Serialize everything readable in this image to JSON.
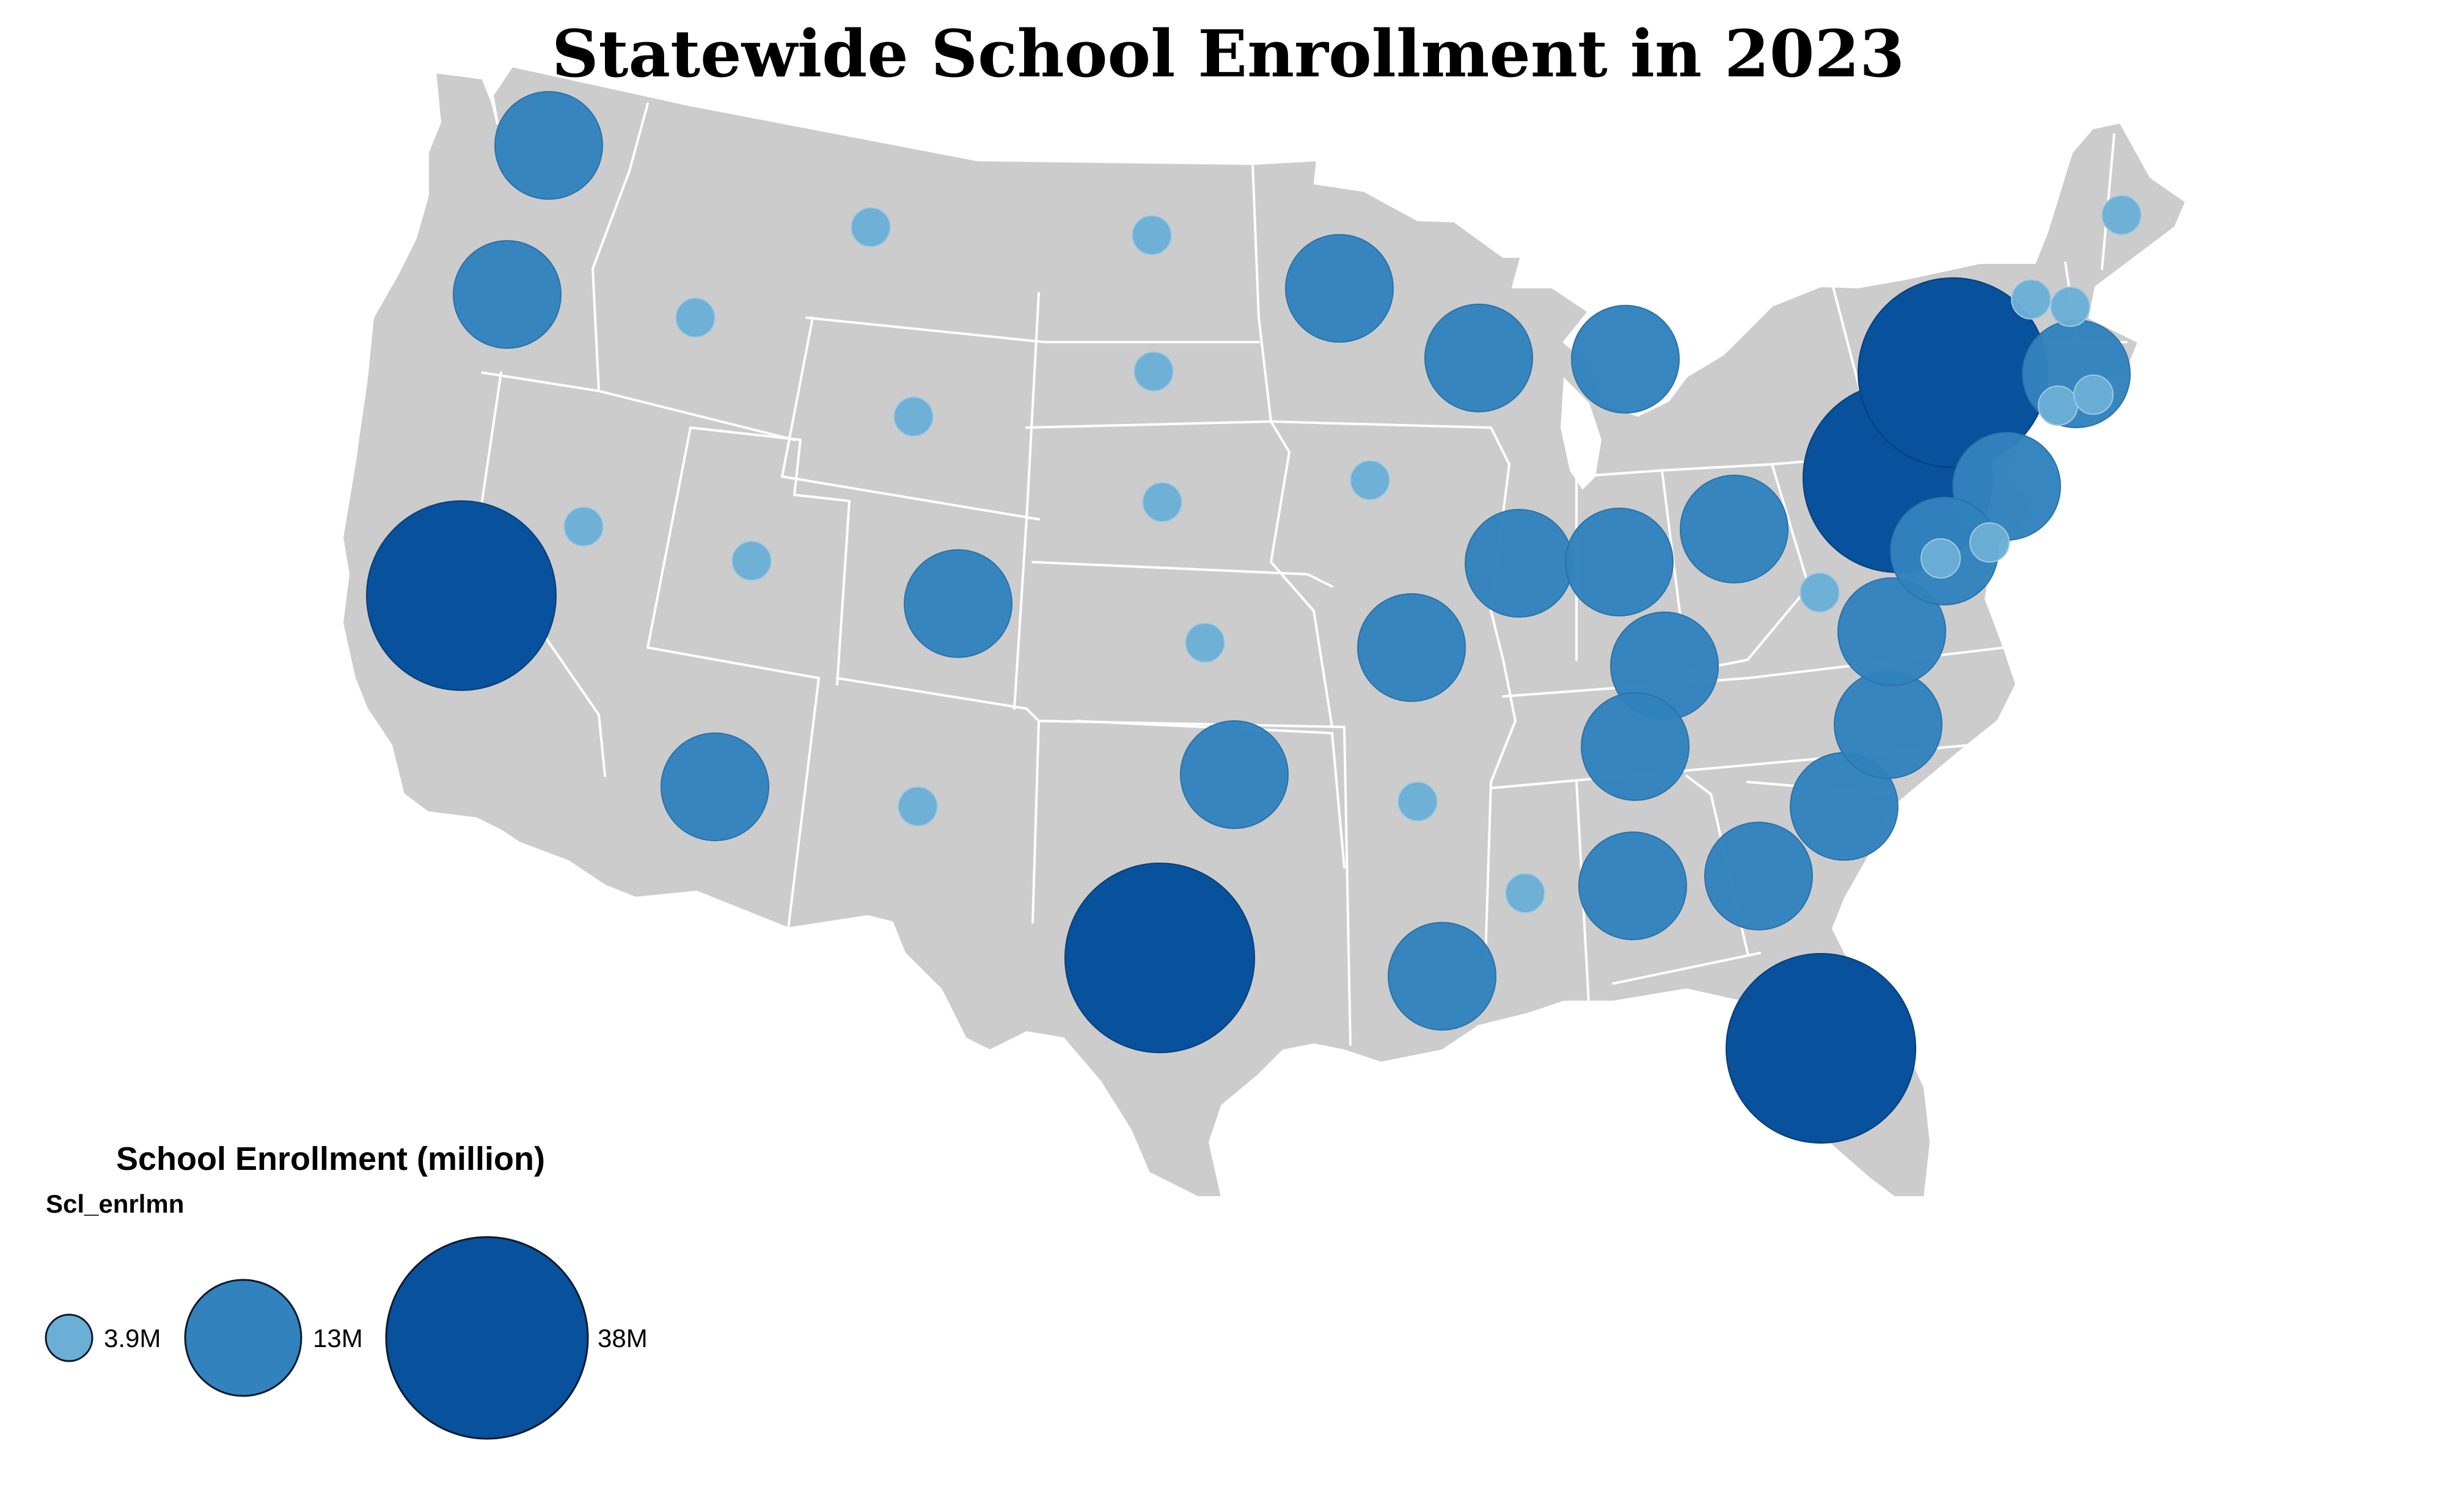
{
  "title": "Statewide School Enrollment in 2023",
  "legend": {
    "title": "School Enrollment (million)",
    "field": "Scl_enrlmn",
    "items": [
      {
        "label": "3.9M",
        "tier": "small"
      },
      {
        "label": "13M",
        "tier": "medium"
      },
      {
        "label": "38M",
        "tier": "large"
      }
    ]
  },
  "colors": {
    "land": "#cccccc",
    "border": "#ffffff",
    "small": "#6baed6",
    "medium": "#3182bd",
    "large": "#08519c"
  },
  "chart_data": {
    "type": "proportional-symbol-map",
    "title": "Statewide School Enrollment in 2023",
    "size_field": "Scl_enrlmn",
    "classes": [
      {
        "label": "3.9M",
        "value_million": 3.9
      },
      {
        "label": "13M",
        "value_million": 13
      },
      {
        "label": "38M",
        "value_million": 38
      }
    ],
    "states": [
      {
        "state": "Washington",
        "tier": "medium"
      },
      {
        "state": "Oregon",
        "tier": "medium"
      },
      {
        "state": "California",
        "tier": "large"
      },
      {
        "state": "Nevada",
        "tier": "small"
      },
      {
        "state": "Idaho",
        "tier": "small"
      },
      {
        "state": "Montana",
        "tier": "small"
      },
      {
        "state": "Wyoming",
        "tier": "small"
      },
      {
        "state": "Utah",
        "tier": "small"
      },
      {
        "state": "Colorado",
        "tier": "medium"
      },
      {
        "state": "Arizona",
        "tier": "medium"
      },
      {
        "state": "New Mexico",
        "tier": "small"
      },
      {
        "state": "North Dakota",
        "tier": "small"
      },
      {
        "state": "South Dakota",
        "tier": "small"
      },
      {
        "state": "Nebraska",
        "tier": "small"
      },
      {
        "state": "Kansas",
        "tier": "small"
      },
      {
        "state": "Oklahoma",
        "tier": "medium"
      },
      {
        "state": "Texas",
        "tier": "large"
      },
      {
        "state": "Minnesota",
        "tier": "medium"
      },
      {
        "state": "Iowa",
        "tier": "small"
      },
      {
        "state": "Missouri",
        "tier": "medium"
      },
      {
        "state": "Arkansas",
        "tier": "small"
      },
      {
        "state": "Louisiana",
        "tier": "medium"
      },
      {
        "state": "Wisconsin",
        "tier": "medium"
      },
      {
        "state": "Illinois",
        "tier": "medium"
      },
      {
        "state": "Michigan",
        "tier": "medium"
      },
      {
        "state": "Indiana",
        "tier": "medium"
      },
      {
        "state": "Ohio",
        "tier": "medium"
      },
      {
        "state": "Kentucky",
        "tier": "medium"
      },
      {
        "state": "Tennessee",
        "tier": "medium"
      },
      {
        "state": "Mississippi",
        "tier": "small"
      },
      {
        "state": "Alabama",
        "tier": "medium"
      },
      {
        "state": "Georgia",
        "tier": "medium"
      },
      {
        "state": "Florida",
        "tier": "large"
      },
      {
        "state": "South Carolina",
        "tier": "medium"
      },
      {
        "state": "North Carolina",
        "tier": "medium"
      },
      {
        "state": "Virginia",
        "tier": "medium"
      },
      {
        "state": "West Virginia",
        "tier": "small"
      },
      {
        "state": "Pennsylvania",
        "tier": "large"
      },
      {
        "state": "New York",
        "tier": "large"
      },
      {
        "state": "New Jersey",
        "tier": "medium"
      },
      {
        "state": "Maryland",
        "tier": "medium"
      },
      {
        "state": "Delaware",
        "tier": "small"
      },
      {
        "state": "District of Columbia",
        "tier": "small"
      },
      {
        "state": "Massachusetts",
        "tier": "medium"
      },
      {
        "state": "Connecticut",
        "tier": "small"
      },
      {
        "state": "Rhode Island",
        "tier": "small"
      },
      {
        "state": "Vermont",
        "tier": "small"
      },
      {
        "state": "New Hampshire",
        "tier": "small"
      },
      {
        "state": "Maine",
        "tier": "small"
      }
    ]
  }
}
